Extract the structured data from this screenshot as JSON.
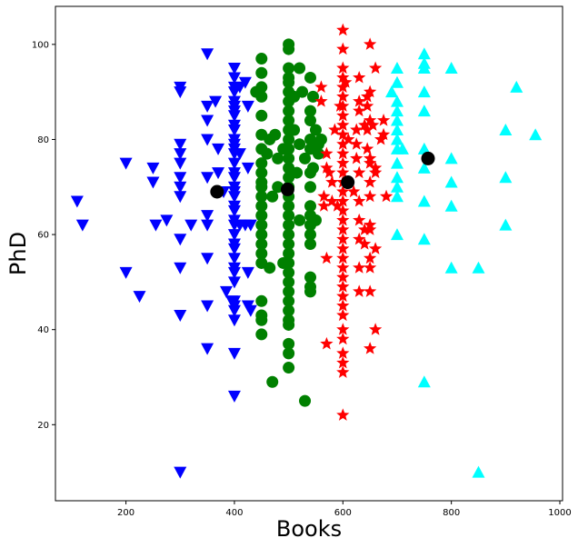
{
  "chart_data": {
    "type": "scatter",
    "xlabel": "Books",
    "ylabel": "PhD",
    "xlim": [
      70,
      1005
    ],
    "ylim": [
      4,
      108
    ],
    "xticks": [
      200,
      400,
      600,
      800,
      1000
    ],
    "yticks": [
      20,
      40,
      60,
      80,
      100
    ],
    "grid": false,
    "series": [
      {
        "marker": "triangle-down",
        "color": "#0000ff",
        "points": [
          [
            110,
            67
          ],
          [
            120,
            62
          ],
          [
            200,
            75
          ],
          [
            200,
            52
          ],
          [
            225,
            47
          ],
          [
            250,
            74
          ],
          [
            250,
            71
          ],
          [
            255,
            62
          ],
          [
            275,
            63
          ],
          [
            300,
            91
          ],
          [
            300,
            90
          ],
          [
            300,
            79
          ],
          [
            300,
            77
          ],
          [
            300,
            75
          ],
          [
            300,
            72
          ],
          [
            300,
            70
          ],
          [
            300,
            68
          ],
          [
            300,
            59
          ],
          [
            300,
            53
          ],
          [
            300,
            43
          ],
          [
            300,
            10
          ],
          [
            320,
            62
          ],
          [
            350,
            98
          ],
          [
            350,
            87
          ],
          [
            350,
            84
          ],
          [
            350,
            80
          ],
          [
            350,
            72
          ],
          [
            350,
            64
          ],
          [
            350,
            62
          ],
          [
            350,
            55
          ],
          [
            350,
            45
          ],
          [
            350,
            36
          ],
          [
            365,
            88
          ],
          [
            370,
            78
          ],
          [
            370,
            73
          ],
          [
            380,
            69
          ],
          [
            385,
            48
          ],
          [
            395,
            46
          ],
          [
            400,
            95
          ],
          [
            400,
            93
          ],
          [
            400,
            91
          ],
          [
            400,
            90
          ],
          [
            400,
            88
          ],
          [
            400,
            87
          ],
          [
            400,
            86
          ],
          [
            400,
            85
          ],
          [
            400,
            83
          ],
          [
            400,
            82
          ],
          [
            400,
            80
          ],
          [
            400,
            79
          ],
          [
            400,
            78
          ],
          [
            400,
            77
          ],
          [
            400,
            75
          ],
          [
            400,
            73
          ],
          [
            400,
            72
          ],
          [
            400,
            70
          ],
          [
            400,
            69
          ],
          [
            400,
            68
          ],
          [
            400,
            66
          ],
          [
            400,
            65
          ],
          [
            400,
            63
          ],
          [
            400,
            62
          ],
          [
            400,
            60
          ],
          [
            400,
            58
          ],
          [
            400,
            57
          ],
          [
            400,
            55
          ],
          [
            400,
            53
          ],
          [
            400,
            52
          ],
          [
            400,
            50
          ],
          [
            400,
            46
          ],
          [
            400,
            45
          ],
          [
            400,
            44
          ],
          [
            400,
            42
          ],
          [
            400,
            35
          ],
          [
            400,
            26
          ],
          [
            410,
            91
          ],
          [
            410,
            77
          ],
          [
            410,
            62
          ],
          [
            420,
            92
          ],
          [
            420,
            62
          ],
          [
            425,
            87
          ],
          [
            425,
            74
          ],
          [
            425,
            52
          ],
          [
            425,
            45
          ],
          [
            430,
            62
          ],
          [
            430,
            44
          ]
        ]
      },
      {
        "marker": "circle",
        "color": "#008000",
        "points": [
          [
            440,
            90
          ],
          [
            450,
            97
          ],
          [
            450,
            94
          ],
          [
            450,
            91
          ],
          [
            450,
            89
          ],
          [
            450,
            85
          ],
          [
            450,
            81
          ],
          [
            450,
            78
          ],
          [
            450,
            75
          ],
          [
            450,
            73
          ],
          [
            450,
            71
          ],
          [
            450,
            70
          ],
          [
            450,
            68
          ],
          [
            450,
            66
          ],
          [
            450,
            64
          ],
          [
            450,
            62
          ],
          [
            450,
            60
          ],
          [
            450,
            58
          ],
          [
            450,
            56
          ],
          [
            450,
            54
          ],
          [
            450,
            46
          ],
          [
            450,
            43
          ],
          [
            450,
            42
          ],
          [
            450,
            39
          ],
          [
            460,
            77
          ],
          [
            465,
            80
          ],
          [
            465,
            53
          ],
          [
            470,
            68
          ],
          [
            470,
            29
          ],
          [
            475,
            81
          ],
          [
            480,
            76
          ],
          [
            480,
            70
          ],
          [
            490,
            78
          ],
          [
            490,
            54
          ],
          [
            500,
            100
          ],
          [
            500,
            99
          ],
          [
            500,
            95
          ],
          [
            500,
            93
          ],
          [
            500,
            92
          ],
          [
            500,
            90
          ],
          [
            500,
            88
          ],
          [
            500,
            86
          ],
          [
            500,
            84
          ],
          [
            500,
            82
          ],
          [
            500,
            80
          ],
          [
            500,
            78
          ],
          [
            500,
            76
          ],
          [
            500,
            74
          ],
          [
            500,
            72
          ],
          [
            500,
            70
          ],
          [
            500,
            68
          ],
          [
            500,
            66
          ],
          [
            500,
            64
          ],
          [
            500,
            62
          ],
          [
            500,
            60
          ],
          [
            500,
            58
          ],
          [
            500,
            56
          ],
          [
            500,
            54
          ],
          [
            500,
            52
          ],
          [
            500,
            50
          ],
          [
            500,
            48
          ],
          [
            500,
            46
          ],
          [
            500,
            44
          ],
          [
            500,
            42
          ],
          [
            500,
            41
          ],
          [
            500,
            37
          ],
          [
            500,
            35
          ],
          [
            500,
            32
          ],
          [
            510,
            89
          ],
          [
            510,
            82
          ],
          [
            515,
            73
          ],
          [
            520,
            95
          ],
          [
            520,
            79
          ],
          [
            520,
            63
          ],
          [
            525,
            90
          ],
          [
            530,
            25
          ],
          [
            530,
            76
          ],
          [
            540,
            93
          ],
          [
            540,
            86
          ],
          [
            540,
            84
          ],
          [
            540,
            80
          ],
          [
            540,
            78
          ],
          [
            540,
            73
          ],
          [
            540,
            70
          ],
          [
            540,
            66
          ],
          [
            540,
            64
          ],
          [
            540,
            62
          ],
          [
            540,
            60
          ],
          [
            540,
            58
          ],
          [
            540,
            51
          ],
          [
            540,
            49
          ],
          [
            540,
            48
          ],
          [
            545,
            89
          ],
          [
            545,
            74
          ],
          [
            550,
            82
          ],
          [
            550,
            63
          ],
          [
            555,
            79
          ],
          [
            555,
            77
          ],
          [
            560,
            80
          ]
        ]
      },
      {
        "marker": "star",
        "color": "#ff0000",
        "points": [
          [
            560,
            91
          ],
          [
            560,
            88
          ],
          [
            565,
            68
          ],
          [
            565,
            66
          ],
          [
            570,
            77
          ],
          [
            570,
            74
          ],
          [
            570,
            55
          ],
          [
            570,
            37
          ],
          [
            575,
            73
          ],
          [
            580,
            71
          ],
          [
            580,
            67
          ],
          [
            585,
            82
          ],
          [
            590,
            66
          ],
          [
            595,
            87
          ],
          [
            600,
            103
          ],
          [
            600,
            99
          ],
          [
            600,
            95
          ],
          [
            600,
            93
          ],
          [
            600,
            91
          ],
          [
            600,
            89
          ],
          [
            600,
            87
          ],
          [
            600,
            85
          ],
          [
            600,
            83
          ],
          [
            600,
            81
          ],
          [
            600,
            79
          ],
          [
            600,
            77
          ],
          [
            600,
            75
          ],
          [
            600,
            73
          ],
          [
            600,
            71
          ],
          [
            600,
            69
          ],
          [
            600,
            67
          ],
          [
            600,
            65
          ],
          [
            600,
            63
          ],
          [
            600,
            61
          ],
          [
            600,
            59
          ],
          [
            600,
            57
          ],
          [
            600,
            55
          ],
          [
            600,
            53
          ],
          [
            600,
            51
          ],
          [
            600,
            49
          ],
          [
            600,
            47
          ],
          [
            600,
            45
          ],
          [
            600,
            43
          ],
          [
            600,
            40
          ],
          [
            600,
            38
          ],
          [
            600,
            35
          ],
          [
            600,
            33
          ],
          [
            600,
            31
          ],
          [
            600,
            22
          ],
          [
            605,
            92
          ],
          [
            610,
            80
          ],
          [
            620,
            69
          ],
          [
            625,
            82
          ],
          [
            625,
            79
          ],
          [
            625,
            76
          ],
          [
            630,
            93
          ],
          [
            630,
            88
          ],
          [
            630,
            86
          ],
          [
            630,
            73
          ],
          [
            630,
            67
          ],
          [
            630,
            63
          ],
          [
            630,
            59
          ],
          [
            630,
            53
          ],
          [
            630,
            48
          ],
          [
            640,
            83
          ],
          [
            640,
            61
          ],
          [
            640,
            58
          ],
          [
            645,
            89
          ],
          [
            645,
            87
          ],
          [
            645,
            82
          ],
          [
            645,
            78
          ],
          [
            650,
            100
          ],
          [
            650,
            90
          ],
          [
            650,
            84
          ],
          [
            650,
            76
          ],
          [
            650,
            75
          ],
          [
            650,
            71
          ],
          [
            650,
            68
          ],
          [
            650,
            62
          ],
          [
            650,
            61
          ],
          [
            650,
            55
          ],
          [
            650,
            53
          ],
          [
            650,
            48
          ],
          [
            650,
            36
          ],
          [
            655,
            83
          ],
          [
            660,
            95
          ],
          [
            660,
            74
          ],
          [
            660,
            73
          ],
          [
            660,
            57
          ],
          [
            660,
            40
          ],
          [
            670,
            80
          ],
          [
            675,
            84
          ],
          [
            675,
            81
          ],
          [
            680,
            68
          ]
        ]
      },
      {
        "marker": "triangle-up",
        "color": "#00ffff",
        "points": [
          [
            690,
            90
          ],
          [
            700,
            95
          ],
          [
            700,
            92
          ],
          [
            700,
            88
          ],
          [
            700,
            86
          ],
          [
            700,
            84
          ],
          [
            700,
            82
          ],
          [
            700,
            80
          ],
          [
            700,
            78
          ],
          [
            700,
            75
          ],
          [
            700,
            72
          ],
          [
            700,
            70
          ],
          [
            700,
            68
          ],
          [
            700,
            60
          ],
          [
            710,
            78
          ],
          [
            750,
            98
          ],
          [
            750,
            96
          ],
          [
            750,
            95
          ],
          [
            750,
            90
          ],
          [
            750,
            86
          ],
          [
            750,
            78
          ],
          [
            750,
            74
          ],
          [
            750,
            67
          ],
          [
            750,
            59
          ],
          [
            750,
            29
          ],
          [
            800,
            95
          ],
          [
            800,
            76
          ],
          [
            800,
            71
          ],
          [
            800,
            66
          ],
          [
            800,
            53
          ],
          [
            850,
            53
          ],
          [
            850,
            10
          ],
          [
            900,
            82
          ],
          [
            900,
            72
          ],
          [
            900,
            62
          ],
          [
            920,
            91
          ],
          [
            955,
            81
          ]
        ]
      },
      {
        "marker": "circle",
        "color": "#000000",
        "points": [
          [
            368,
            69
          ],
          [
            498,
            69.5
          ],
          [
            609,
            71
          ],
          [
            757,
            76
          ]
        ]
      }
    ]
  }
}
